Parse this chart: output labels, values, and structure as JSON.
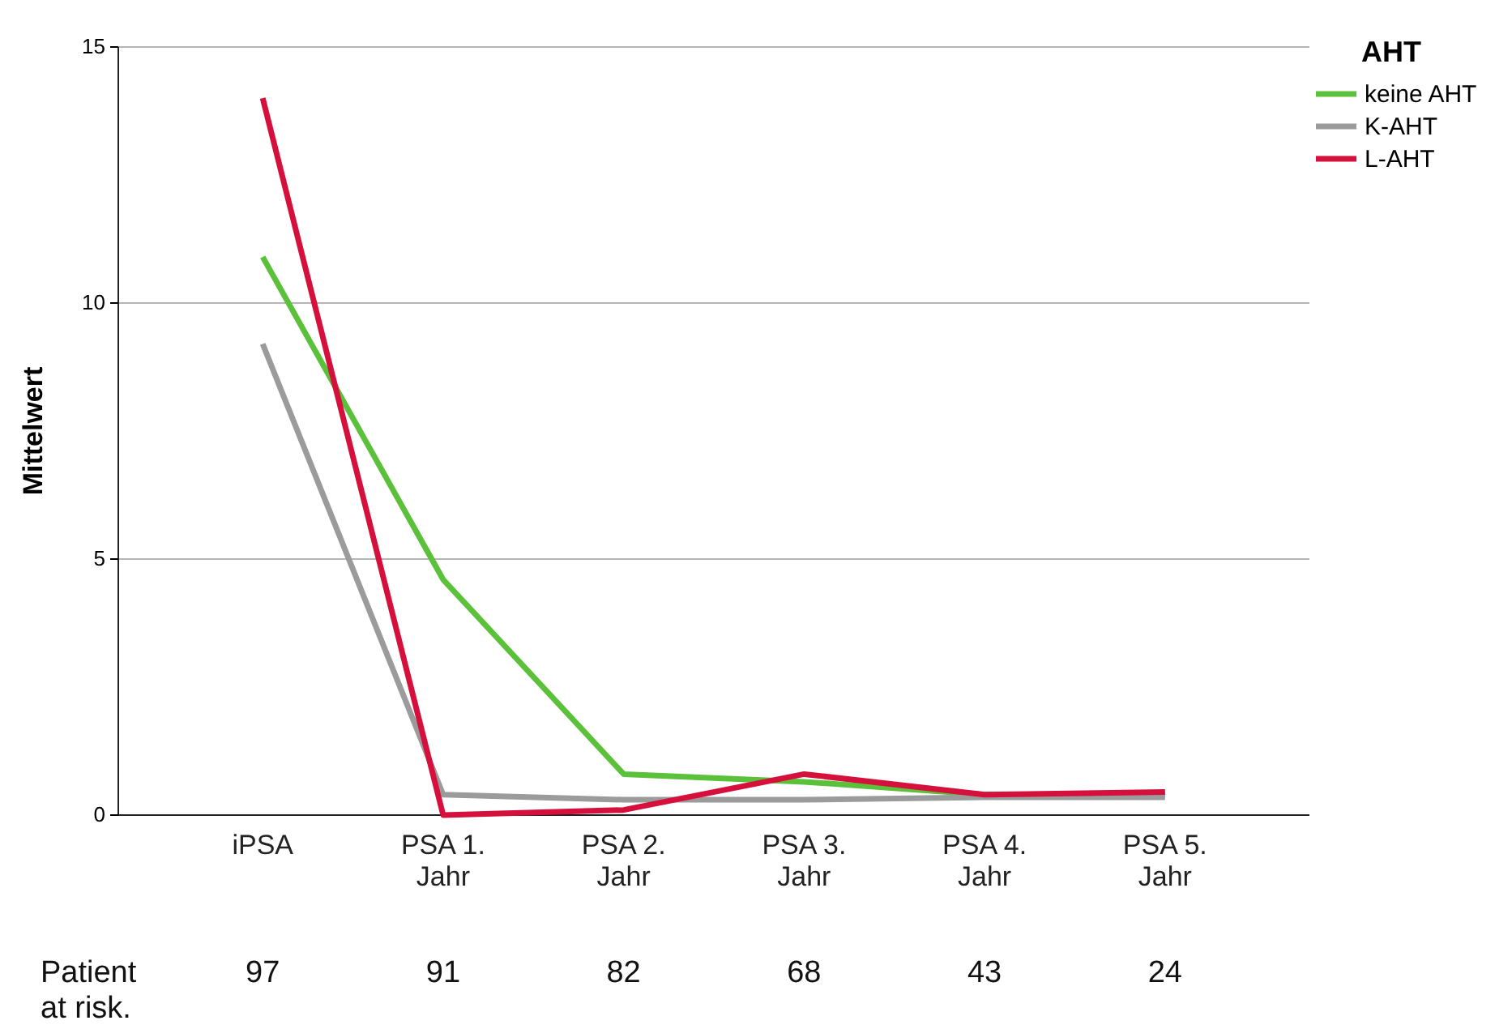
{
  "chart_data": {
    "type": "line",
    "ylabel": "Mittelwert",
    "legend_title": "AHT",
    "legend": "top right",
    "grid": "y",
    "line_style": "solid",
    "marker": "none",
    "categories": [
      "iPSA",
      "PSA 1. Jahr",
      "PSA 2. Jahr",
      "PSA 3. Jahr",
      "PSA 4. Jahr",
      "PSA 5. Jahr"
    ],
    "ylim": [
      0,
      15
    ],
    "yticks": [
      0,
      5,
      10,
      15
    ],
    "series": [
      {
        "name": "keine AHT",
        "color": "#5cc13a",
        "values": [
          10.9,
          4.6,
          0.8,
          0.65,
          0.4,
          0.4
        ]
      },
      {
        "name": "K-AHT",
        "color": "#9b9b9b",
        "values": [
          9.2,
          0.4,
          0.3,
          0.3,
          0.35,
          0.35
        ]
      },
      {
        "name": "L-AHT",
        "color": "#d6103c",
        "values": [
          14.0,
          0,
          0.1,
          0.8,
          0.4,
          0.45
        ]
      }
    ],
    "annotations": [
      "Patient at risk.",
      "97",
      "91",
      "82",
      "68",
      "43",
      "24"
    ]
  }
}
